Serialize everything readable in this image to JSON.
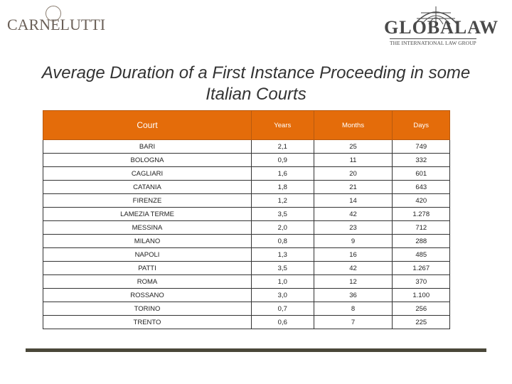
{
  "logos": {
    "left": {
      "name": "CARNELUTTI"
    },
    "right": {
      "name": "GLOBALAW",
      "tagline": "THE INTERNATIONAL LAW GROUP"
    }
  },
  "title": "Average Duration of a First Instance Proceeding in some Italian Courts",
  "table": {
    "header": [
      "Court",
      "Years",
      "Months",
      "Days"
    ],
    "rows": [
      [
        "BARI",
        "2,1",
        "25",
        "749"
      ],
      [
        "BOLOGNA",
        "0,9",
        "11",
        "332"
      ],
      [
        "CAGLIARI",
        "1,6",
        "20",
        "601"
      ],
      [
        "CATANIA",
        "1,8",
        "21",
        "643"
      ],
      [
        "FIRENZE",
        "1,2",
        "14",
        "420"
      ],
      [
        "LAMEZIA TERME",
        "3,5",
        "42",
        "1.278"
      ],
      [
        "MESSINA",
        "2,0",
        "23",
        "712"
      ],
      [
        "MILANO",
        "0,8",
        "9",
        "288"
      ],
      [
        "NAPOLI",
        "1,3",
        "16",
        "485"
      ],
      [
        "PATTI",
        "3,5",
        "42",
        "1.267"
      ],
      [
        "ROMA",
        "1,0",
        "12",
        "370"
      ],
      [
        "ROSSANO",
        "3,0",
        "36",
        "1.100"
      ],
      [
        "TORINO",
        "0,7",
        "8",
        "256"
      ],
      [
        "TRENTO",
        "0,6",
        "7",
        "225"
      ]
    ]
  }
}
